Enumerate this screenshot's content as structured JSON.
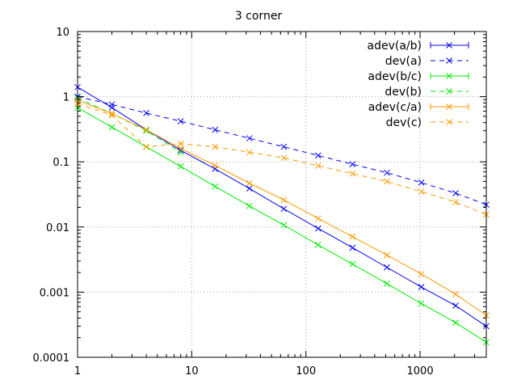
{
  "chart_data": {
    "type": "line",
    "title": "3 corner",
    "xlabel": "",
    "ylabel": "",
    "xscale": "log",
    "yscale": "log",
    "xlim": [
      1,
      3800
    ],
    "ylim": [
      0.0001,
      10
    ],
    "grid": true,
    "legend_position": "top-right",
    "x_ticks": [
      {
        "value": 1,
        "label": "1"
      },
      {
        "value": 10,
        "label": "10"
      },
      {
        "value": 100,
        "label": "100"
      },
      {
        "value": 1000,
        "label": "1000"
      }
    ],
    "y_ticks": [
      {
        "value": 0.0001,
        "label": "0.0001"
      },
      {
        "value": 0.001,
        "label": "0.001"
      },
      {
        "value": 0.01,
        "label": "0.01"
      },
      {
        "value": 0.1,
        "label": "0.1"
      },
      {
        "value": 1,
        "label": "1"
      },
      {
        "value": 10,
        "label": "10"
      }
    ],
    "series": [
      {
        "name": "adev(a/b)",
        "color": "#0000ff",
        "dashed": false,
        "x": [
          1,
          2,
          4,
          8,
          16,
          32,
          64,
          128,
          256,
          512,
          1024,
          2048,
          3800
        ],
        "y": [
          1.4,
          0.68,
          0.31,
          0.15,
          0.078,
          0.039,
          0.019,
          0.0095,
          0.0048,
          0.0024,
          0.0012,
          0.00062,
          0.0003
        ]
      },
      {
        "name": "dev(a)",
        "color": "#0000ff",
        "dashed": true,
        "x": [
          1,
          2,
          4,
          8,
          16,
          32,
          64,
          128,
          256,
          512,
          1024,
          2048,
          3800
        ],
        "y": [
          1.0,
          0.76,
          0.56,
          0.42,
          0.31,
          0.23,
          0.17,
          0.125,
          0.092,
          0.068,
          0.048,
          0.033,
          0.022
        ]
      },
      {
        "name": "adev(b/c)",
        "color": "#00ee00",
        "dashed": false,
        "x": [
          1,
          2,
          4,
          8,
          16,
          32,
          64,
          128,
          256,
          512,
          1024,
          2048,
          3800
        ],
        "y": [
          0.68,
          0.34,
          0.17,
          0.085,
          0.042,
          0.021,
          0.0107,
          0.0053,
          0.0027,
          0.00135,
          0.00067,
          0.00034,
          0.00017
        ]
      },
      {
        "name": "dev(b)",
        "color": "#00ee00",
        "dashed": true,
        "x": [
          1,
          2,
          4,
          8
        ],
        "y": [
          0.95,
          0.55,
          0.3,
          0.14
        ]
      },
      {
        "name": "adev(c/a)",
        "color": "#ff9900",
        "dashed": false,
        "x": [
          1,
          2,
          4,
          8,
          16,
          32,
          64,
          128,
          256,
          512,
          1024,
          2048,
          3800
        ],
        "y": [
          0.88,
          0.55,
          0.31,
          0.16,
          0.088,
          0.047,
          0.026,
          0.0135,
          0.0071,
          0.0037,
          0.0019,
          0.00093,
          0.00044
        ]
      },
      {
        "name": "dev(c)",
        "color": "#ff9900",
        "dashed": true,
        "x": [
          1,
          2,
          4,
          8,
          16,
          32,
          64,
          128,
          256,
          512,
          1024,
          2048,
          3800
        ],
        "y": [
          0.78,
          0.52,
          0.17,
          0.19,
          0.17,
          0.14,
          0.115,
          0.087,
          0.066,
          0.05,
          0.035,
          0.024,
          0.0155
        ]
      }
    ]
  }
}
